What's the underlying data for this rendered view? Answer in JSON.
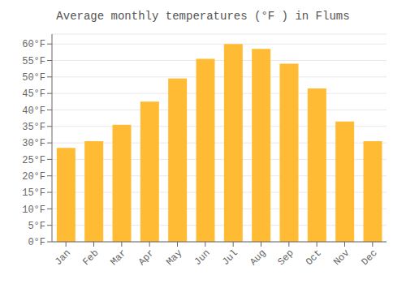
{
  "chart_data": {
    "type": "bar",
    "title": "Average monthly temperatures (°F ) in Flums",
    "categories": [
      "Jan",
      "Feb",
      "Mar",
      "Apr",
      "May",
      "Jun",
      "Jul",
      "Aug",
      "Sep",
      "Oct",
      "Nov",
      "Dec"
    ],
    "values": [
      28.5,
      30.5,
      35.5,
      42.5,
      49.5,
      55.5,
      60.0,
      58.5,
      54.0,
      46.5,
      36.5,
      30.5
    ],
    "color": "#FFBB33",
    "ylim": [
      0,
      63
    ],
    "yticks": [
      {
        "value": 0,
        "label": "0°F"
      },
      {
        "value": 5,
        "label": "5°F"
      },
      {
        "value": 10,
        "label": "10°F"
      },
      {
        "value": 15,
        "label": "15°F"
      },
      {
        "value": 20,
        "label": "20°F"
      },
      {
        "value": 25,
        "label": "25°F"
      },
      {
        "value": 30,
        "label": "30°F"
      },
      {
        "value": 35,
        "label": "35°F"
      },
      {
        "value": 40,
        "label": "40°F"
      },
      {
        "value": 45,
        "label": "45°F"
      },
      {
        "value": 50,
        "label": "50°F"
      },
      {
        "value": 55,
        "label": "55°F"
      },
      {
        "value": 60,
        "label": "60°F"
      }
    ],
    "grid": true
  }
}
